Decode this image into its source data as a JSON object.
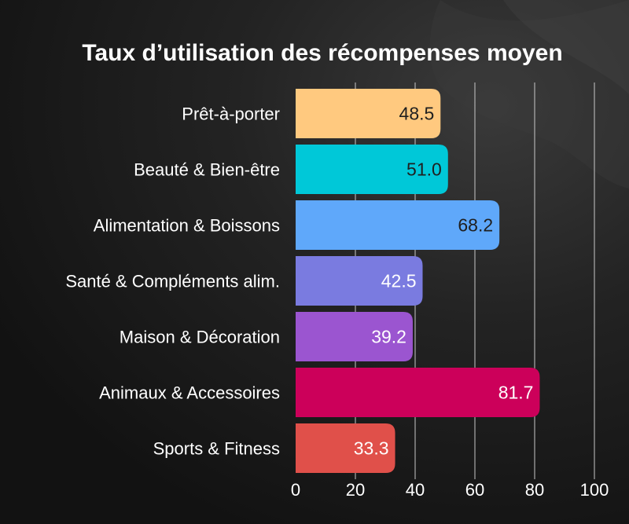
{
  "chart_data": {
    "type": "bar",
    "orientation": "horizontal",
    "title": "Taux d’utilisation des récompenses moyen",
    "categories": [
      "Prêt-à-porter",
      "Beauté & Bien-être",
      "Alimentation & Boissons",
      "Santé & Compléments alim.",
      "Maison & Décoration",
      "Animaux & Accessoires",
      "Sports & Fitness"
    ],
    "values": [
      48.5,
      51.0,
      68.2,
      42.5,
      39.2,
      81.7,
      33.3
    ],
    "value_labels": [
      "48.5",
      "51.0",
      "68.2",
      "42.5",
      "39.2",
      "81.7",
      "33.3"
    ],
    "bar_colors": [
      "#FFC97F",
      "#00C8D8",
      "#5FA8FA",
      "#7A7BE0",
      "#9B55D0",
      "#CC005A",
      "#E0504A"
    ],
    "label_colors": [
      "#1f1f1f",
      "#1f1f1f",
      "#1f1f1f",
      "#ffffff",
      "#ffffff",
      "#ffffff",
      "#ffffff"
    ],
    "xlim": [
      0,
      100
    ],
    "xticks": [
      "0",
      "20",
      "40",
      "60",
      "80",
      "100"
    ],
    "grid": true,
    "colors": {
      "background": "#151515",
      "text": "#ffffff",
      "grid": "#cfcfcf"
    }
  }
}
